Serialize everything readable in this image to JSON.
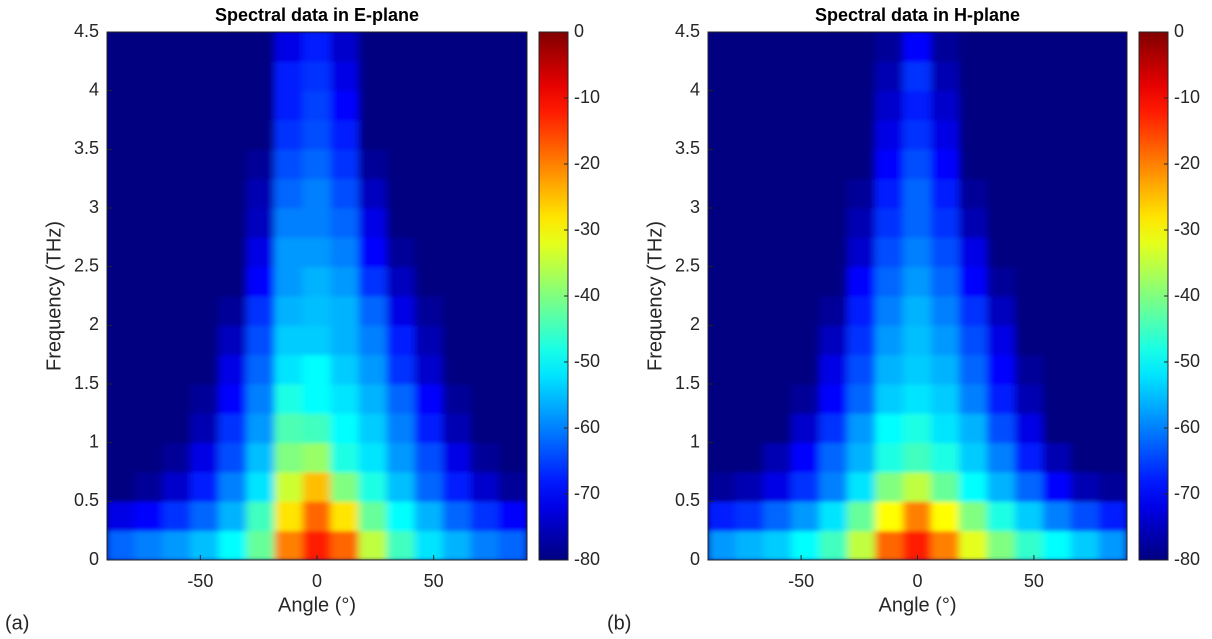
{
  "chart_data": [
    {
      "type": "heatmap",
      "title": "Spectral data in E-plane",
      "xlabel": "Angle (°)",
      "ylabel": "Frequency (THz)",
      "panel_label": "(a)",
      "colormap": "jet",
      "x": [
        -84,
        -72,
        -60,
        -48,
        -36,
        -24,
        -12,
        0,
        12,
        24,
        36,
        48,
        60,
        72,
        84
      ],
      "y": [
        0.125,
        0.375,
        0.625,
        0.875,
        1.125,
        1.375,
        1.625,
        1.875,
        2.125,
        2.375,
        2.625,
        2.875,
        3.125,
        3.375,
        3.625,
        3.875,
        4.125,
        4.375
      ],
      "values": [
        [
          -62,
          -60,
          -58,
          -55,
          -50,
          -42,
          -20,
          -12,
          -18,
          -35,
          -45,
          -52,
          -56,
          -60,
          -62
        ],
        [
          -72,
          -70,
          -66,
          -62,
          -56,
          -45,
          -28,
          -18,
          -28,
          -42,
          -50,
          -56,
          -62,
          -66,
          -70
        ],
        [
          -80,
          -78,
          -74,
          -68,
          -60,
          -52,
          -34,
          -25,
          -40,
          -48,
          -55,
          -62,
          -68,
          -74,
          -78
        ],
        [
          -80,
          -80,
          -78,
          -72,
          -64,
          -55,
          -40,
          -38,
          -48,
          -52,
          -58,
          -64,
          -72,
          -78,
          -80
        ],
        [
          -80,
          -80,
          -80,
          -76,
          -66,
          -58,
          -44,
          -45,
          -50,
          -54,
          -60,
          -68,
          -76,
          -80,
          -80
        ],
        [
          -80,
          -80,
          -80,
          -78,
          -70,
          -60,
          -48,
          -50,
          -52,
          -56,
          -62,
          -70,
          -78,
          -80,
          -80
        ],
        [
          -80,
          -80,
          -80,
          -80,
          -72,
          -62,
          -52,
          -50,
          -54,
          -58,
          -66,
          -74,
          -80,
          -80,
          -80
        ],
        [
          -80,
          -80,
          -80,
          -80,
          -75,
          -64,
          -54,
          -54,
          -56,
          -60,
          -68,
          -76,
          -80,
          -80,
          -80
        ],
        [
          -80,
          -80,
          -80,
          -80,
          -78,
          -66,
          -56,
          -55,
          -56,
          -62,
          -72,
          -78,
          -80,
          -80,
          -80
        ],
        [
          -80,
          -80,
          -80,
          -80,
          -80,
          -70,
          -58,
          -56,
          -58,
          -66,
          -75,
          -80,
          -80,
          -80,
          -80
        ],
        [
          -80,
          -80,
          -80,
          -80,
          -80,
          -72,
          -58,
          -58,
          -60,
          -70,
          -78,
          -80,
          -80,
          -80,
          -80
        ],
        [
          -80,
          -80,
          -80,
          -80,
          -80,
          -75,
          -60,
          -60,
          -62,
          -72,
          -80,
          -80,
          -80,
          -80,
          -80
        ],
        [
          -80,
          -80,
          -80,
          -80,
          -80,
          -76,
          -62,
          -60,
          -64,
          -75,
          -80,
          -80,
          -80,
          -80,
          -80
        ],
        [
          -80,
          -80,
          -80,
          -80,
          -80,
          -78,
          -64,
          -62,
          -66,
          -78,
          -80,
          -80,
          -80,
          -80,
          -80
        ],
        [
          -80,
          -80,
          -80,
          -80,
          -80,
          -80,
          -66,
          -64,
          -68,
          -80,
          -80,
          -80,
          -80,
          -80,
          -80
        ],
        [
          -80,
          -80,
          -80,
          -80,
          -80,
          -80,
          -68,
          -65,
          -70,
          -80,
          -80,
          -80,
          -80,
          -80,
          -80
        ],
        [
          -80,
          -80,
          -80,
          -80,
          -80,
          -80,
          -68,
          -66,
          -72,
          -80,
          -80,
          -80,
          -80,
          -80,
          -80
        ],
        [
          -80,
          -80,
          -80,
          -80,
          -80,
          -80,
          -72,
          -68,
          -74,
          -80,
          -80,
          -80,
          -80,
          -80,
          -80
        ]
      ],
      "xlim": [
        -90,
        90
      ],
      "xticks": [
        -50,
        0,
        50
      ],
      "ylim": [
        0,
        4.5
      ],
      "yticks": [
        0,
        0.5,
        1,
        1.5,
        2,
        2.5,
        3,
        3.5,
        4,
        4.5
      ],
      "clim": [
        -80,
        0
      ],
      "cticks": [
        -80,
        -70,
        -60,
        -50,
        -40,
        -30,
        -20,
        -10,
        0
      ]
    },
    {
      "type": "heatmap",
      "title": "Spectral data in H-plane",
      "xlabel": "Angle (°)",
      "ylabel": "Frequency (THz)",
      "panel_label": "(b)",
      "colormap": "jet",
      "x": [
        -84,
        -72,
        -60,
        -48,
        -36,
        -24,
        -12,
        0,
        12,
        24,
        36,
        48,
        60,
        72,
        84
      ],
      "y": [
        0.125,
        0.375,
        0.625,
        0.875,
        1.125,
        1.375,
        1.625,
        1.875,
        2.125,
        2.375,
        2.625,
        2.875,
        3.125,
        3.375,
        3.625,
        3.875,
        4.125,
        4.375
      ],
      "values": [
        [
          -58,
          -56,
          -54,
          -50,
          -45,
          -35,
          -18,
          -12,
          -20,
          -32,
          -40,
          -46,
          -50,
          -54,
          -58
        ],
        [
          -68,
          -66,
          -62,
          -58,
          -52,
          -42,
          -30,
          -20,
          -30,
          -40,
          -48,
          -54,
          -60,
          -64,
          -68
        ],
        [
          -78,
          -76,
          -72,
          -66,
          -60,
          -52,
          -40,
          -35,
          -42,
          -50,
          -56,
          -62,
          -70,
          -76,
          -78
        ],
        [
          -80,
          -80,
          -76,
          -70,
          -62,
          -56,
          -48,
          -45,
          -48,
          -54,
          -60,
          -68,
          -76,
          -80,
          -80
        ],
        [
          -80,
          -80,
          -80,
          -74,
          -66,
          -58,
          -50,
          -48,
          -52,
          -56,
          -64,
          -72,
          -80,
          -80,
          -80
        ],
        [
          -80,
          -80,
          -80,
          -78,
          -70,
          -62,
          -54,
          -52,
          -54,
          -60,
          -68,
          -76,
          -80,
          -80,
          -80
        ],
        [
          -80,
          -80,
          -80,
          -80,
          -72,
          -64,
          -56,
          -54,
          -56,
          -62,
          -70,
          -78,
          -80,
          -80,
          -80
        ],
        [
          -80,
          -80,
          -80,
          -80,
          -75,
          -66,
          -58,
          -55,
          -58,
          -64,
          -72,
          -80,
          -80,
          -80,
          -80
        ],
        [
          -80,
          -80,
          -80,
          -80,
          -78,
          -68,
          -60,
          -56,
          -60,
          -66,
          -75,
          -80,
          -80,
          -80,
          -80
        ],
        [
          -80,
          -80,
          -80,
          -80,
          -80,
          -70,
          -62,
          -58,
          -62,
          -70,
          -78,
          -80,
          -80,
          -80,
          -80
        ],
        [
          -80,
          -80,
          -80,
          -80,
          -80,
          -74,
          -64,
          -60,
          -64,
          -72,
          -80,
          -80,
          -80,
          -80,
          -80
        ],
        [
          -80,
          -80,
          -80,
          -80,
          -80,
          -76,
          -66,
          -62,
          -66,
          -76,
          -80,
          -80,
          -80,
          -80,
          -80
        ],
        [
          -80,
          -80,
          -80,
          -80,
          -80,
          -78,
          -68,
          -62,
          -68,
          -78,
          -80,
          -80,
          -80,
          -80,
          -80
        ],
        [
          -80,
          -80,
          -80,
          -80,
          -80,
          -80,
          -70,
          -64,
          -70,
          -80,
          -80,
          -80,
          -80,
          -80,
          -80
        ],
        [
          -80,
          -80,
          -80,
          -80,
          -80,
          -80,
          -72,
          -66,
          -72,
          -80,
          -80,
          -80,
          -80,
          -80,
          -80
        ],
        [
          -80,
          -80,
          -80,
          -80,
          -80,
          -80,
          -74,
          -68,
          -74,
          -80,
          -80,
          -80,
          -80,
          -80,
          -80
        ],
        [
          -80,
          -80,
          -80,
          -80,
          -80,
          -80,
          -76,
          -66,
          -76,
          -80,
          -80,
          -80,
          -80,
          -80,
          -80
        ],
        [
          -80,
          -80,
          -80,
          -80,
          -80,
          -80,
          -78,
          -70,
          -78,
          -80,
          -80,
          -80,
          -80,
          -80,
          -80
        ]
      ],
      "xlim": [
        -90,
        90
      ],
      "xticks": [
        -50,
        0,
        50
      ],
      "ylim": [
        0,
        4.5
      ],
      "yticks": [
        0,
        0.5,
        1,
        1.5,
        2,
        2.5,
        3,
        3.5,
        4,
        4.5
      ],
      "clim": [
        -80,
        0
      ],
      "cticks": [
        -80,
        -70,
        -60,
        -50,
        -40,
        -30,
        -20,
        -10,
        0
      ]
    }
  ]
}
